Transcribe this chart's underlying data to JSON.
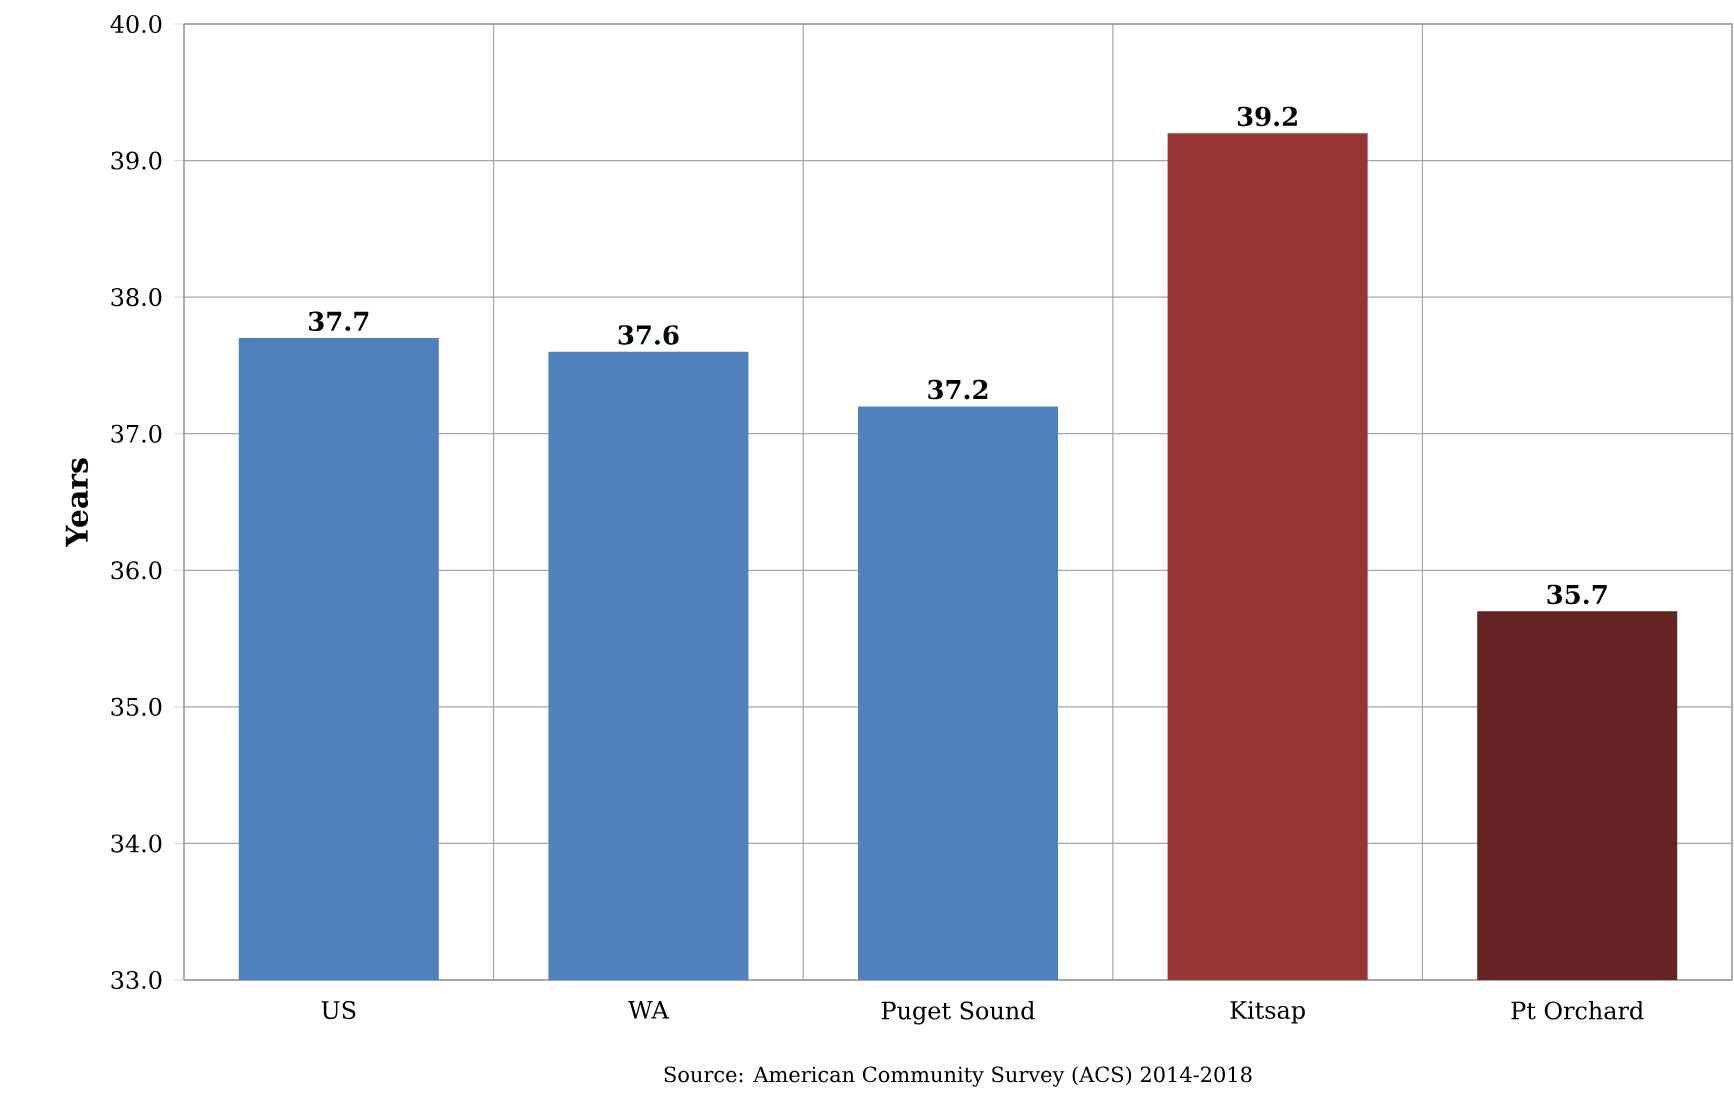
{
  "chart_data": {
    "type": "bar",
    "ylabel": "Years",
    "categories": [
      "US",
      "WA",
      "Puget Sound",
      "Kitsap",
      "Pt Orchard"
    ],
    "values": [
      37.7,
      37.6,
      37.2,
      39.2,
      35.7
    ],
    "colors": [
      "#4f81bd",
      "#4f81bd",
      "#4f81bd",
      "#953735",
      "#632423"
    ],
    "ylim": [
      33,
      40
    ],
    "yticks": [
      {
        "value": 33,
        "label": "33.0"
      },
      {
        "value": 34,
        "label": "34.0"
      },
      {
        "value": 35,
        "label": "35.0"
      },
      {
        "value": 36,
        "label": "36.0"
      },
      {
        "value": 37,
        "label": "37.0"
      },
      {
        "value": 38,
        "label": "38.0"
      },
      {
        "value": 39,
        "label": "39.0"
      },
      {
        "value": 40,
        "label": "40.0"
      }
    ],
    "grid": true,
    "data_labels": true,
    "annotations": [
      "Source: American Community Survey (ACS) 2014-2018"
    ]
  }
}
